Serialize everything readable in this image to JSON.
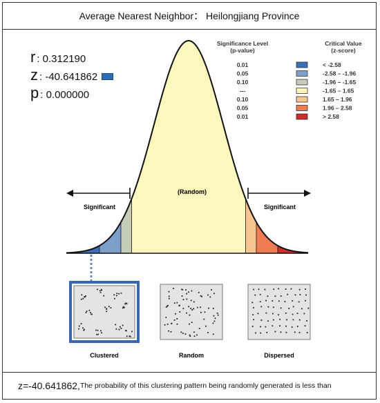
{
  "title": "Average Nearest Neighbor： Heilongjiang Province",
  "stats": {
    "r_label": "r",
    "r_value": ": 0.312190",
    "z_label": "z",
    "z_value": ": -40.641862",
    "p_label": "p",
    "p_value": ": 0.000000"
  },
  "legend": {
    "sig_header_1": "Significance Level",
    "sig_header_2": "(p-value)",
    "crit_header_1": "Critical Value",
    "crit_header_2": "(z-score)",
    "rows": [
      {
        "p": "0.01",
        "z": "< -2.58",
        "color": "#3b6fb6"
      },
      {
        "p": "0.05",
        "z": "-2.58 – -1.96",
        "color": "#7f9fcb"
      },
      {
        "p": "0.10",
        "z": "-1.96 – -1.65",
        "color": "#c3cdb8"
      },
      {
        "p": "---",
        "z": "-1.65 – 1.65",
        "color": "#fbf7bd"
      },
      {
        "p": "0.10",
        "z": "1.65 – 1.96",
        "color": "#f8c58e"
      },
      {
        "p": "0.05",
        "z": "1.96 – 2.58",
        "color": "#ee7b52"
      },
      {
        "p": "0.01",
        "z": "> 2.58",
        "color": "#cf2b27"
      }
    ]
  },
  "curve_labels": {
    "random": "(Random)",
    "significant_left": "Significant",
    "significant_right": "Significant"
  },
  "patterns": {
    "clustered": "Clustered",
    "random": "Random",
    "dispersed": "Dispersed"
  },
  "footer": {
    "z_text": "z=-40.641862,",
    "probability_text": "The probability of this clustering pattern being randomly generated is less than"
  },
  "colors": {
    "highlight_border": "#3a67b0",
    "z_marker": "#2f6db3"
  }
}
